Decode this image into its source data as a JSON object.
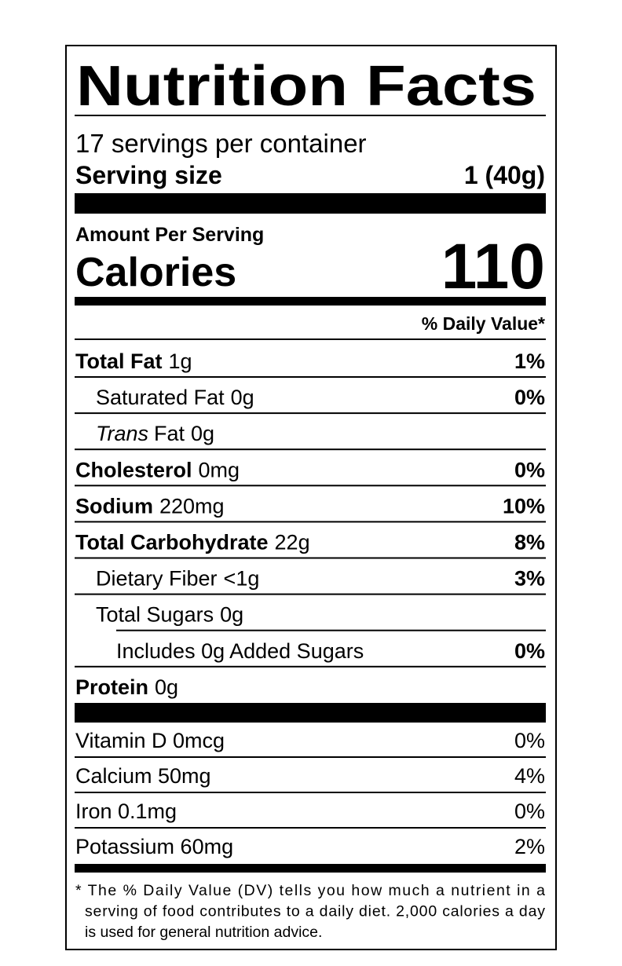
{
  "title": "Nutrition Facts",
  "servings": "17 servings per container",
  "serving_size": {
    "label": "Serving size",
    "value": "1 (40g)"
  },
  "amount_per_serving": "Amount Per Serving",
  "calories": {
    "label": "Calories",
    "value": "110"
  },
  "daily_value_header": "% Daily Value*",
  "nutrients": [
    {
      "name": "Total Fat",
      "amount": "1g",
      "dv": "1%",
      "sub": [
        {
          "name": "Saturated Fat",
          "amount": "0g",
          "dv": "0%"
        },
        {
          "name_italic": "Trans",
          "name": "Fat",
          "amount": "0g"
        }
      ]
    },
    {
      "name": "Cholesterol",
      "amount": "0mg",
      "dv": "0%"
    },
    {
      "name": "Sodium",
      "amount": "220mg",
      "dv": "10%"
    },
    {
      "name": "Total Carbohydrate",
      "amount": "22g",
      "dv": "8%",
      "sub": [
        {
          "name": "Dietary Fiber",
          "amount": "<1g",
          "dv": "3%"
        },
        {
          "name": "Total Sugars",
          "amount": "0g",
          "sub": [
            {
              "text": "Includes 0g Added Sugars",
              "dv": "0%"
            }
          ]
        }
      ]
    },
    {
      "name": "Protein",
      "amount": "0g"
    }
  ],
  "vitamins": [
    {
      "text": "Vitamin D 0mcg",
      "dv": "0%"
    },
    {
      "text": "Calcium 50mg",
      "dv": "4%"
    },
    {
      "text": "Iron 0.1mg",
      "dv": "0%"
    },
    {
      "text": "Potassium 60mg",
      "dv": "2%"
    }
  ],
  "footnote": [
    "* The % Daily Value (DV) tells you how much a nutrient in a",
    "serving of food contributes to a daily diet. 2,000 calories a day",
    "is used for general nutrition advice."
  ]
}
